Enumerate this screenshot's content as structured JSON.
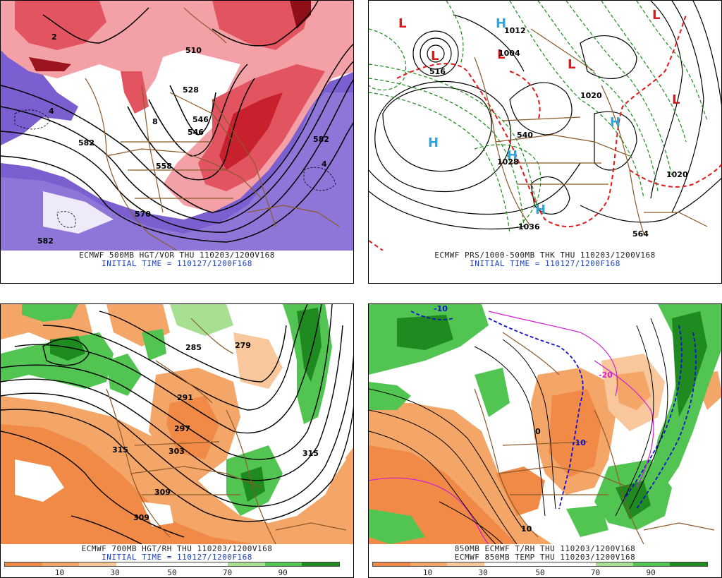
{
  "panels": [
    {
      "caption": "ECMWF 500MB HGT/VOR THU 110203/1200V168",
      "initial": "INITIAL TIME = 110127/1200F168",
      "contours": [
        "582",
        "546",
        "558",
        "570",
        "582",
        "4",
        "4",
        "2",
        "8",
        "582",
        "510",
        "528",
        "546"
      ]
    },
    {
      "caption": "ECMWF PRS/1000-500MB THK THU 110203/1200V168",
      "initial": "INITIAL TIME = 110127/1200F168",
      "contours": [
        "1020",
        "1012",
        "1004",
        "1020",
        "1028",
        "1036",
        "540",
        "516",
        "564"
      ]
    },
    {
      "caption": "ECMWF 700MB HGT/RH THU 110203/1200V168",
      "initial": "INITIAL TIME = 110127/1200F168",
      "contours": [
        "315",
        "303",
        "309",
        "309",
        "297",
        "291",
        "315",
        "285",
        "279"
      ],
      "colorbar": {
        "colors": [
          "#f08a46",
          "#f4a568",
          "#f9c79c",
          "#ffffff",
          "#ffffff",
          "#ffffff",
          "#a7e092",
          "#52c452",
          "#1f8a1f"
        ],
        "ticks": [
          "10",
          "30",
          "50",
          "70",
          "90"
        ]
      }
    },
    {
      "caption": "850MB ECMWF T/RH THU 110203/1200V168",
      "initial": "ECMWF 850MB TEMP THU 110203/1200V168",
      "contours": [
        "-10",
        "0",
        "10",
        "-20",
        "-10"
      ],
      "colorbar": {
        "colors": [
          "#f08a46",
          "#f4a568",
          "#f9c79c",
          "#ffffff",
          "#ffffff",
          "#ffffff",
          "#a7e092",
          "#52c452",
          "#1f8a1f"
        ],
        "ticks": [
          "10",
          "30",
          "50",
          "70",
          "90"
        ]
      }
    }
  ],
  "symbols": {
    "low": "L",
    "high": "H"
  },
  "colors": {
    "vorticity_red": "#d8202a",
    "vorticity_purple": "#7b5fd0",
    "rh_green": "#28a828",
    "rh_orange": "#f08a46",
    "low_red": "#e01818",
    "high_cyan": "#29a7e0",
    "thickness_green": "#1a8a1a",
    "geography_brown": "#8b5a2b",
    "contour_black": "#000000",
    "temp_blue": "#1010d0",
    "temp_magenta": "#d020d0"
  }
}
